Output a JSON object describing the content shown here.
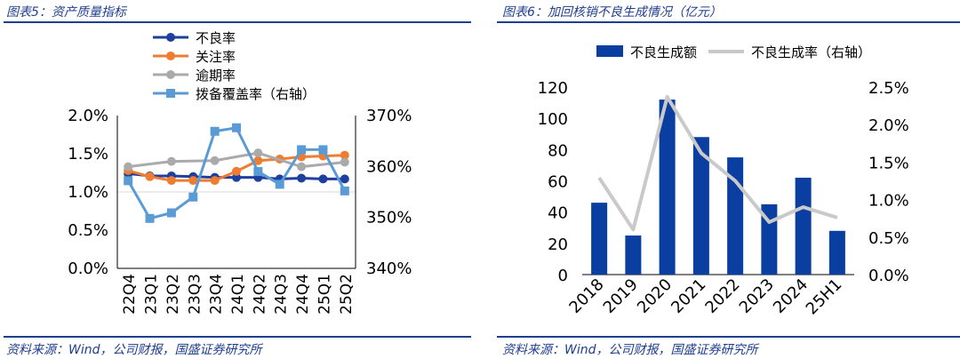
{
  "left_panel": {
    "title": "图表5：资产质量指标",
    "source": "资料来源：Wind，公司财报，国盛证券研究所"
  },
  "right_panel": {
    "title": "图表6：加回核销不良生成情况（亿元）",
    "source": "资料来源：Wind，公司财报，国盛证券研究所"
  },
  "colors": {
    "brand_blue": "#1e3e8e",
    "npl": "#1f3f9f",
    "attention": "#ee7d31",
    "overdue": "#aaaaaa",
    "coverage": "#5b9bd5",
    "bar": "#0a3ea0",
    "rate_line": "#c9c9c9"
  },
  "chart_data": [
    {
      "type": "line",
      "categories": [
        "22Q4",
        "23Q1",
        "23Q2",
        "23Q3",
        "23Q4",
        "24Q1",
        "24Q2",
        "24Q3",
        "24Q4",
        "25Q1",
        "25Q2"
      ],
      "y_left": {
        "ylim": [
          0,
          2.0
        ],
        "ticks": [
          "0.0%",
          "0.5%",
          "1.0%",
          "1.5%",
          "2.0%"
        ]
      },
      "y_right": {
        "ylim": [
          340,
          370
        ],
        "ticks": [
          "340%",
          "350%",
          "360%",
          "370%"
        ]
      },
      "legend_position": "top-left",
      "series": [
        {
          "name": "不良率",
          "axis": "left",
          "marker": "circle",
          "values": [
            1.24,
            1.21,
            1.21,
            1.2,
            1.19,
            1.19,
            1.19,
            1.17,
            1.18,
            1.17,
            1.17
          ]
        },
        {
          "name": "关注率",
          "axis": "left",
          "marker": "circle",
          "values": [
            1.28,
            1.2,
            1.15,
            1.15,
            1.15,
            1.27,
            1.41,
            1.43,
            1.46,
            1.47,
            1.48
          ]
        },
        {
          "name": "逾期率",
          "axis": "left",
          "marker": "circle",
          "values": [
            1.33,
            null,
            1.4,
            null,
            1.41,
            null,
            1.51,
            null,
            1.33,
            null,
            1.39
          ]
        },
        {
          "name": "拨备覆盖率（右轴）",
          "axis": "right",
          "marker": "square",
          "values": [
            357.2,
            349.8,
            350.9,
            354.0,
            366.9,
            367.6,
            359.0,
            356.5,
            363.3,
            363.3,
            355.2
          ]
        }
      ]
    },
    {
      "type": "bar",
      "categories": [
        "2018",
        "2019",
        "2020",
        "2021",
        "2022",
        "2023",
        "2024",
        "25H1"
      ],
      "y_left": {
        "ylim": [
          0,
          120
        ],
        "ticks": [
          "0",
          "20",
          "40",
          "60",
          "80",
          "100",
          "120"
        ]
      },
      "y_right": {
        "ylim": [
          0,
          2.5
        ],
        "ticks": [
          "0.0%",
          "0.5%",
          "1.0%",
          "1.5%",
          "2.0%",
          "2.5%"
        ]
      },
      "legend_position": "top",
      "series": [
        {
          "name": "不良生成额",
          "axis": "left",
          "kind": "bar",
          "values": [
            46,
            25,
            112,
            88,
            75,
            45,
            62,
            28
          ]
        },
        {
          "name": "不良生成率（右轴）",
          "axis": "right",
          "kind": "line",
          "values": [
            1.29,
            0.6,
            2.37,
            1.62,
            1.25,
            0.7,
            0.9,
            0.76
          ]
        }
      ]
    }
  ]
}
